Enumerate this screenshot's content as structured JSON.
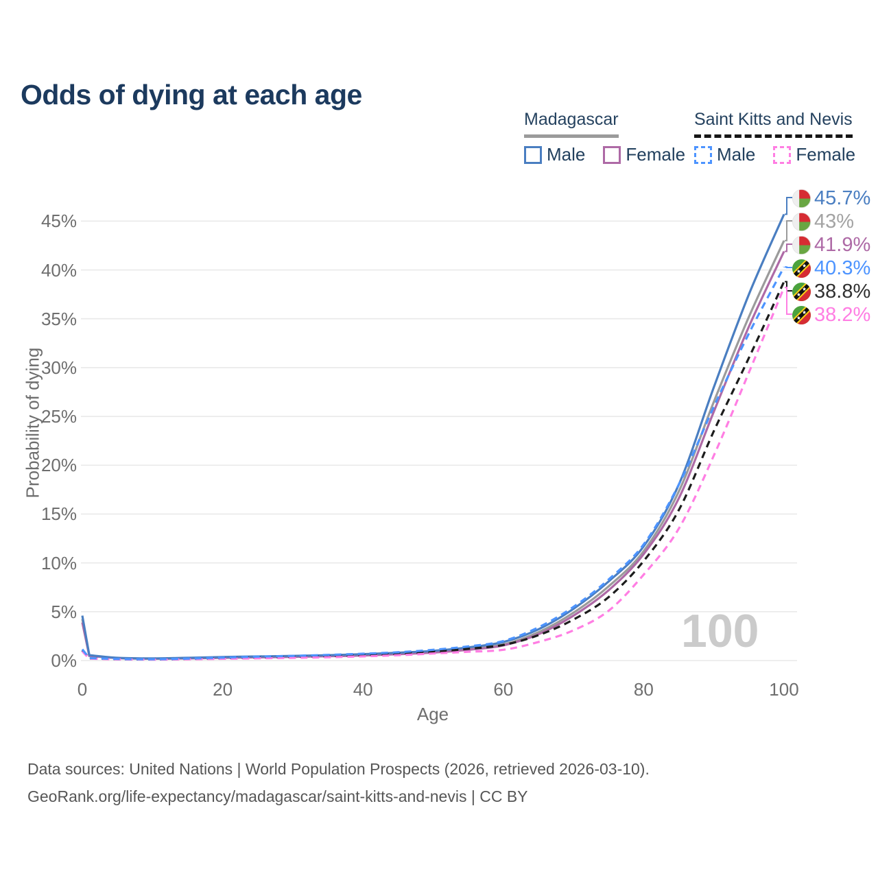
{
  "title": "Odds of dying at each age",
  "legend": {
    "groups": [
      {
        "name": "Madagascar",
        "line_style": "solid",
        "line_color": "#9b9b9b",
        "items": [
          {
            "label": "Male",
            "color": "#4a7ec1",
            "style": "solid"
          },
          {
            "label": "Female",
            "color": "#ae6aa6",
            "style": "solid"
          }
        ]
      },
      {
        "name": "Saint Kitts and Nevis",
        "line_style": "dashed",
        "line_color": "#161616",
        "items": [
          {
            "label": "Male",
            "color": "#4d94ff",
            "style": "dashed"
          },
          {
            "label": "Female",
            "color": "#ff7ee3",
            "style": "dashed"
          }
        ]
      }
    ]
  },
  "chart_data": {
    "type": "line",
    "title": "Odds of dying at each age",
    "xlabel": "Age",
    "ylabel": "Probability of dying",
    "xlim": [
      0,
      100
    ],
    "ylim": [
      0,
      47.5
    ],
    "x_ticks": [
      0,
      20,
      40,
      60,
      80,
      100
    ],
    "y_ticks": [
      {
        "value": 0,
        "label": "0%"
      },
      {
        "value": 5,
        "label": "5%"
      },
      {
        "value": 10,
        "label": "10%"
      },
      {
        "value": 15,
        "label": "15%"
      },
      {
        "value": 20,
        "label": "20%"
      },
      {
        "value": 25,
        "label": "25%"
      },
      {
        "value": 30,
        "label": "30%"
      },
      {
        "value": 35,
        "label": "35%"
      },
      {
        "value": 40,
        "label": "40%"
      },
      {
        "value": 45,
        "label": "45%"
      }
    ],
    "grid": "horizontal",
    "legend_position": "top-right",
    "watermark": "100",
    "ages": [
      0,
      1,
      5,
      10,
      15,
      20,
      25,
      30,
      35,
      40,
      45,
      50,
      55,
      60,
      65,
      70,
      75,
      80,
      85,
      90,
      95,
      100
    ],
    "series": [
      {
        "name": "Madagascar Male",
        "country": "Madagascar",
        "sex": "Male",
        "color": "#4a7ec1",
        "dash": "solid",
        "flag": "madagascar",
        "end_label": "45.7%",
        "end_label_color": "#4a7ec1",
        "values": [
          4.6,
          0.55,
          0.28,
          0.22,
          0.28,
          0.36,
          0.42,
          0.48,
          0.55,
          0.65,
          0.8,
          1.0,
          1.35,
          1.9,
          3.2,
          5.3,
          8.1,
          11.7,
          18.0,
          28.0,
          37.5,
          45.7
        ]
      },
      {
        "name": "Madagascar",
        "country": "Madagascar",
        "sex": "Both",
        "color": "#9b9b9b",
        "dash": "solid",
        "flag": "madagascar",
        "end_label": "43%",
        "end_label_color": "#a3a3a3",
        "values": [
          4.25,
          0.5,
          0.26,
          0.2,
          0.25,
          0.32,
          0.38,
          0.43,
          0.49,
          0.58,
          0.72,
          0.9,
          1.2,
          1.65,
          2.9,
          4.9,
          7.6,
          11.2,
          17.3,
          26.5,
          35.2,
          43.0
        ]
      },
      {
        "name": "Madagascar Female",
        "country": "Madagascar",
        "sex": "Female",
        "color": "#ae6aa6",
        "dash": "solid",
        "flag": "madagascar",
        "end_label": "41.9%",
        "end_label_color": "#ae6aa6",
        "values": [
          3.9,
          0.48,
          0.25,
          0.19,
          0.22,
          0.28,
          0.33,
          0.38,
          0.44,
          0.52,
          0.65,
          0.82,
          1.1,
          1.55,
          2.7,
          4.6,
          7.2,
          10.9,
          16.6,
          25.5,
          34.2,
          41.9
        ]
      },
      {
        "name": "Saint Kitts and Nevis Male",
        "country": "Saint Kitts and Nevis",
        "sex": "Male",
        "color": "#4d94ff",
        "dash": "dashed",
        "flag": "saint-kitts",
        "end_label": "40.3%",
        "end_label_color": "#4d94ff",
        "values": [
          1.15,
          0.25,
          0.16,
          0.13,
          0.2,
          0.3,
          0.4,
          0.48,
          0.58,
          0.7,
          0.85,
          1.1,
          1.45,
          2.0,
          3.4,
          5.5,
          8.3,
          11.9,
          18.0,
          26.0,
          33.5,
          40.3
        ]
      },
      {
        "name": "Saint Kitts and Nevis",
        "country": "Saint Kitts and Nevis",
        "sex": "Both",
        "color": "#1c1c1c",
        "dash": "dashed",
        "flag": "saint-kitts",
        "end_label": "38.8%",
        "end_label_color": "#303030",
        "values": [
          1.05,
          0.22,
          0.14,
          0.11,
          0.16,
          0.24,
          0.31,
          0.37,
          0.45,
          0.55,
          0.7,
          0.9,
          1.2,
          1.6,
          2.6,
          4.2,
          6.5,
          10.2,
          15.4,
          23.5,
          31.0,
          38.8
        ]
      },
      {
        "name": "Saint Kitts and Nevis Female",
        "country": "Saint Kitts and Nevis",
        "sex": "Female",
        "color": "#ff7ee3",
        "dash": "dashed",
        "flag": "saint-kitts",
        "end_label": "38.2%",
        "end_label_color": "#ff7ee3",
        "values": [
          0.95,
          0.2,
          0.12,
          0.1,
          0.13,
          0.18,
          0.23,
          0.28,
          0.34,
          0.43,
          0.55,
          0.72,
          0.9,
          1.1,
          1.9,
          3.1,
          5.1,
          8.8,
          13.5,
          21.0,
          29.5,
          38.2
        ]
      }
    ]
  },
  "footer": {
    "line1": "Data sources: United Nations | World Population Prospects (2026, retrieved 2026-03-10).",
    "line2": "GeoRank.org/life-expectancy/madagascar/saint-kitts-and-nevis | CC BY"
  }
}
